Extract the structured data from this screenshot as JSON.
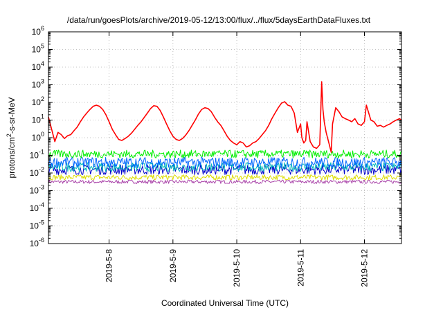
{
  "chart_data": {
    "type": "line",
    "title": "/data/run/goesPlots/archive/2019-05-12/13:00/flux/../flux/5daysEarthDataFluxes.txt",
    "xlabel": "Coordinated Universal Time (UTC)",
    "ylabel": {
      "pre": "protons/cm",
      "sup": "2",
      "post": "-s-sr-MeV"
    },
    "yscale": "log",
    "ylim": [
      1e-06,
      1000000.0
    ],
    "xlim": [
      7.05,
      12.58
    ],
    "grid": true,
    "y_ticks": [
      {
        "v": -6,
        "base": "10",
        "exp": "-6"
      },
      {
        "v": -5,
        "base": "10",
        "exp": "-5"
      },
      {
        "v": -4,
        "base": "10",
        "exp": "-4"
      },
      {
        "v": -3,
        "base": "10",
        "exp": "-3"
      },
      {
        "v": -2,
        "base": "10",
        "exp": "-2"
      },
      {
        "v": -1,
        "base": "10",
        "exp": "-1"
      },
      {
        "v": 0,
        "base": "10",
        "exp": "0"
      },
      {
        "v": 1,
        "base": "10",
        "exp": "1"
      },
      {
        "v": 2,
        "base": "10",
        "exp": "2"
      },
      {
        "v": 3,
        "base": "10",
        "exp": "3"
      },
      {
        "v": 4,
        "base": "10",
        "exp": "4"
      },
      {
        "v": 5,
        "base": "10",
        "exp": "5"
      },
      {
        "v": 6,
        "base": "10",
        "exp": "6"
      }
    ],
    "x_ticks": [
      {
        "v": 8,
        "label": "2019-5-8"
      },
      {
        "v": 9,
        "label": "2019-5-9"
      },
      {
        "v": 10,
        "label": "2019-5-10"
      },
      {
        "v": 11,
        "label": "2019-5-11"
      },
      {
        "v": 12,
        "label": "2019-5-12"
      }
    ],
    "series": [
      {
        "color": "#ff0000",
        "x": [
          7.05,
          7.1,
          7.15,
          7.2,
          7.25,
          7.3,
          7.35,
          7.4,
          7.45,
          7.5,
          7.55,
          7.6,
          7.65,
          7.7,
          7.75,
          7.8,
          7.85,
          7.9,
          7.95,
          8.0,
          8.05,
          8.1,
          8.15,
          8.2,
          8.25,
          8.3,
          8.35,
          8.4,
          8.45,
          8.5,
          8.55,
          8.6,
          8.65,
          8.7,
          8.75,
          8.8,
          8.85,
          8.9,
          8.95,
          9.0,
          9.05,
          9.1,
          9.15,
          9.2,
          9.25,
          9.3,
          9.35,
          9.4,
          9.45,
          9.5,
          9.55,
          9.6,
          9.65,
          9.7,
          9.75,
          9.8,
          9.85,
          9.9,
          9.95,
          10.0,
          10.05,
          10.1,
          10.15,
          10.2,
          10.25,
          10.3,
          10.35,
          10.4,
          10.45,
          10.5,
          10.55,
          10.6,
          10.65,
          10.7,
          10.75,
          10.8,
          10.85,
          10.9,
          10.95,
          11.0,
          11.02,
          11.05,
          11.08,
          11.1,
          11.15,
          11.2,
          11.25,
          11.3,
          11.33,
          11.35,
          11.37,
          11.4,
          11.45,
          11.48,
          11.5,
          11.55,
          11.6,
          11.65,
          11.7,
          11.75,
          11.8,
          11.85,
          11.9,
          11.95,
          12.0,
          12.03,
          12.05,
          12.1,
          12.15,
          12.2,
          12.25,
          12.3,
          12.35,
          12.4,
          12.45,
          12.5,
          12.55,
          12.58
        ],
        "y": [
          15,
          3,
          0.6,
          2,
          1.5,
          0.9,
          1.3,
          1.5,
          2.5,
          4,
          8,
          15,
          25,
          40,
          60,
          70,
          60,
          40,
          20,
          8,
          3,
          1.5,
          0.8,
          0.7,
          0.9,
          1.2,
          1.8,
          3,
          5,
          8,
          14,
          25,
          45,
          65,
          60,
          35,
          15,
          6,
          2.5,
          1.2,
          0.8,
          0.7,
          0.9,
          1.4,
          2.5,
          5,
          10,
          22,
          40,
          50,
          45,
          30,
          15,
          8,
          5,
          2.5,
          1.2,
          0.7,
          0.5,
          0.4,
          0.6,
          0.5,
          0.3,
          0.35,
          0.5,
          0.6,
          0.9,
          1.5,
          2.5,
          5,
          12,
          25,
          50,
          90,
          110,
          70,
          60,
          25,
          2,
          6,
          1,
          0.5,
          0.7,
          8,
          0.6,
          0.3,
          0.25,
          0.4,
          1500,
          40,
          8,
          2,
          0.4,
          0.15,
          6,
          50,
          30,
          15,
          12,
          10,
          8,
          12,
          6,
          5,
          8,
          70,
          40,
          10,
          8,
          4.5,
          5,
          4,
          5,
          6,
          8,
          10,
          12,
          10
        ]
      },
      {
        "color": "#00ee00",
        "band": [
          0.07,
          0.2
        ]
      },
      {
        "color": "#0066ff",
        "band": [
          0.02,
          0.08
        ]
      },
      {
        "color": "#00bbbb",
        "band": [
          0.012,
          0.04
        ]
      },
      {
        "color": "#0000cc",
        "band": [
          0.008,
          0.03
        ]
      },
      {
        "color": "#dddd00",
        "band": [
          0.004,
          0.008
        ]
      },
      {
        "color": "#aa44aa",
        "band": [
          0.0025,
          0.004
        ]
      }
    ]
  }
}
